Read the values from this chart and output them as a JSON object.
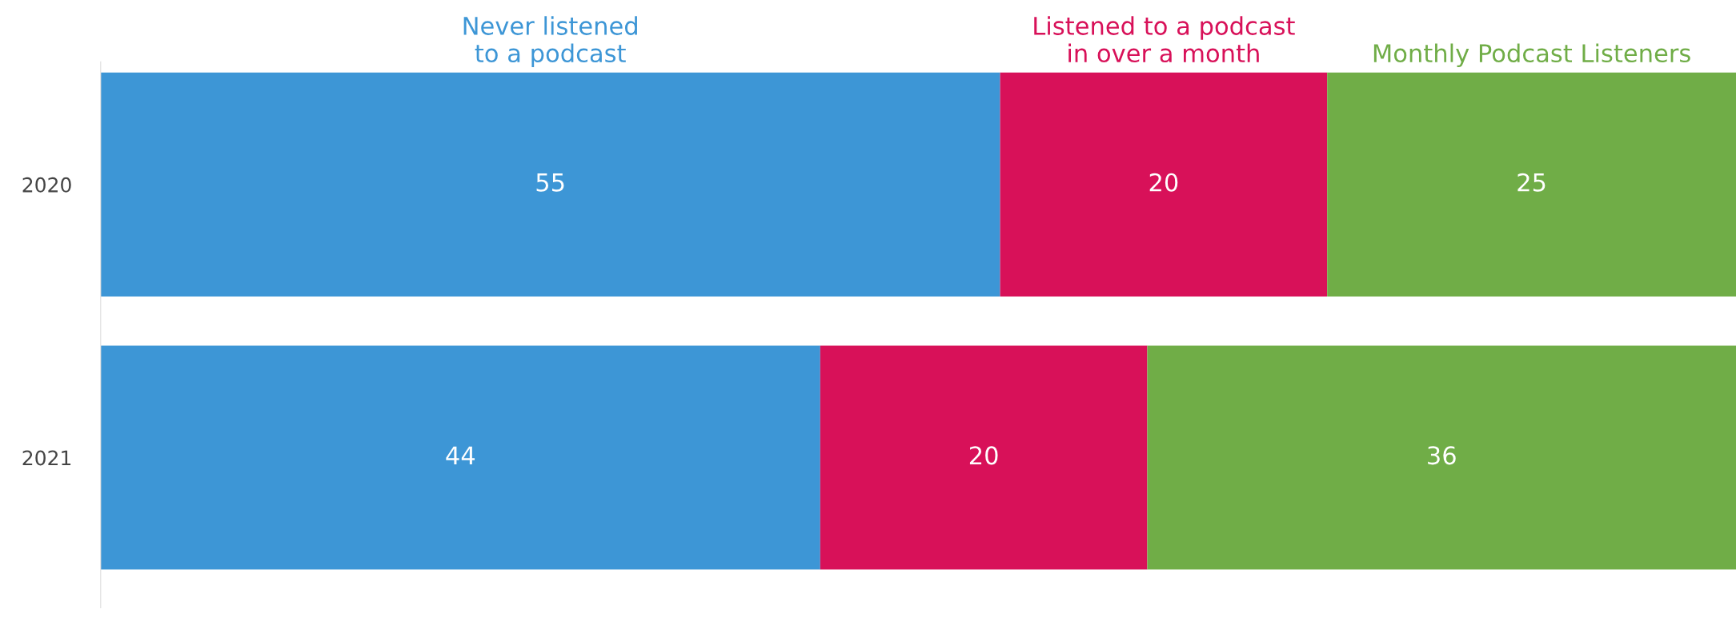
{
  "chart_data": {
    "type": "bar",
    "orientation": "horizontal",
    "stacked": true,
    "categories": [
      "2020",
      "2021"
    ],
    "series": [
      {
        "name": "Never listened\nto a podcast",
        "color": "#3d96d6",
        "values": [
          55,
          44
        ]
      },
      {
        "name": "Listened to a podcast\nin over a month",
        "color": "#d81159",
        "values": [
          20,
          20
        ]
      },
      {
        "name": "Monthly Podcast Listeners",
        "color": "#70ad47",
        "values": [
          25,
          36
        ]
      }
    ],
    "xlim": [
      0,
      100
    ],
    "data_labels": true,
    "tick_labels": "y",
    "grid": false,
    "legend": false
  }
}
